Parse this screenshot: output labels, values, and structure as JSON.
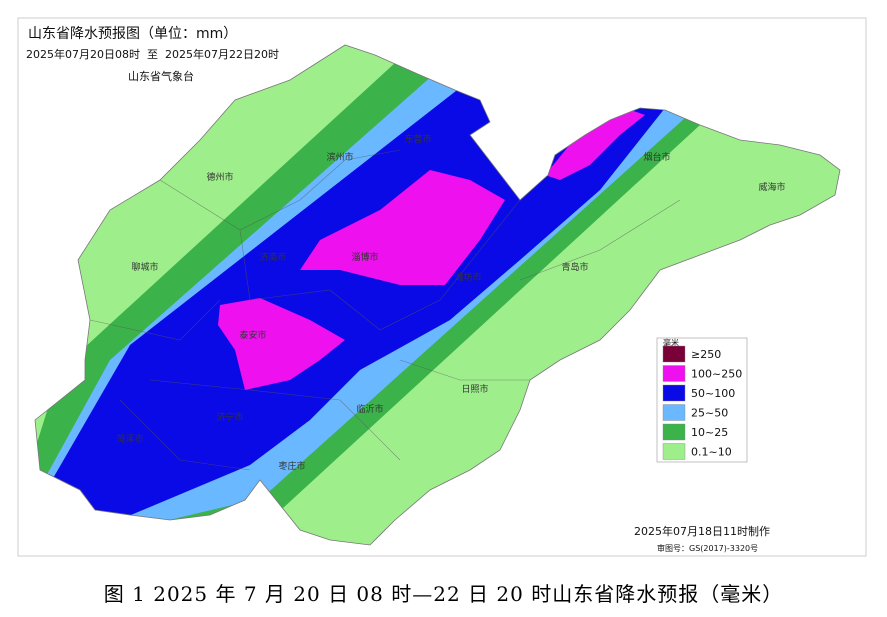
{
  "title": "山东省降水预报图（单位：mm）",
  "period": "2025年07月20日08时  至  2025年07月22日20时",
  "issuer": "山东省气象台",
  "cities": [
    "德州市",
    "滨州市",
    "东营市",
    "烟台市",
    "威海市",
    "聊城市",
    "济南市",
    "淄博市",
    "潍坊市",
    "青岛市",
    "泰安市",
    "日照市",
    "临沂市",
    "济宁市",
    "菏泽市",
    "枣庄市"
  ],
  "legend": {
    "title": "毫米",
    "items": [
      {
        "label": "≥250",
        "color": "#7a0038"
      },
      {
        "label": "100~250",
        "color": "#ee10ee"
      },
      {
        "label": "50~100",
        "color": "#0a0ae6"
      },
      {
        "label": "25~50",
        "color": "#6ab8ff"
      },
      {
        "label": "10~25",
        "color": "#3bb34a"
      },
      {
        "label": "0.1~10",
        "color": "#9fee8c"
      }
    ]
  },
  "made": "2025年07月18日11时制作",
  "approval": "审图号：GS(2017)-3320号",
  "caption": "图 1 2025 年 7 月 20 日 08 时—22 日 20 时山东省降水预报（毫米）"
}
